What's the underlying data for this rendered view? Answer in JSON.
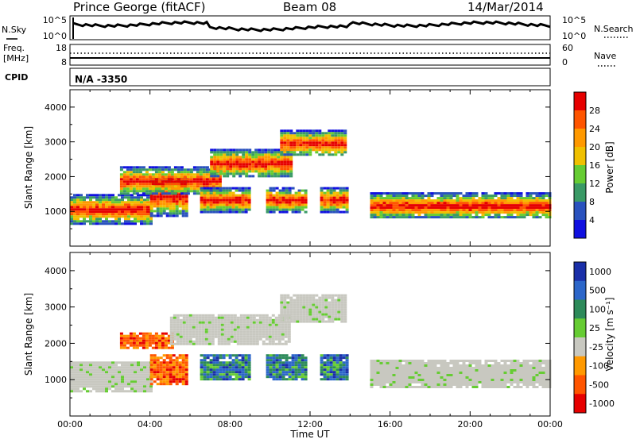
{
  "header": {
    "station": "Prince George (fitACF)",
    "beam": "Beam 08",
    "date": "14/Mar/2014"
  },
  "panels": {
    "nsky": {
      "label": "N.Sky",
      "right_label": "N.Search",
      "ticks": [
        "10^5",
        "10^0"
      ],
      "right_ticks": [
        "10^5",
        "10^0"
      ]
    },
    "freq": {
      "label_top": "Freq.",
      "label_unit": "[MHz]",
      "right_label": "Nave",
      "ticks": [
        "18",
        "8"
      ],
      "right_ticks": [
        "60",
        "0"
      ]
    },
    "cpid": {
      "label": "CPID",
      "value": "N/A -3350"
    }
  },
  "chart_data": [
    {
      "type": "heatmap",
      "name": "power",
      "xlabel": "",
      "ylabel": "Slant Range [km]",
      "xlim": [
        0,
        24
      ],
      "ylim": [
        0,
        4500
      ],
      "yticks": [
        1000,
        2000,
        3000,
        4000
      ],
      "colorbar": {
        "label": "Power [dB]",
        "ticks": [
          "28",
          "24",
          "20",
          "16",
          "12",
          "8",
          "4"
        ],
        "colors": [
          "#e60000",
          "#ff5500",
          "#ff9900",
          "#f0c000",
          "#66cc33",
          "#3a9a66",
          "#2a52be",
          "#1010e0"
        ]
      },
      "bands": [
        {
          "x0": 0.0,
          "x1": 4.0,
          "y0": 650,
          "y1": 1500
        },
        {
          "x0": 4.0,
          "x1": 5.8,
          "y0": 900,
          "y1": 2000
        },
        {
          "x0": 2.5,
          "x1": 7.5,
          "y0": 1500,
          "y1": 2300
        },
        {
          "x0": 7.0,
          "x1": 11.0,
          "y0": 2000,
          "y1": 2800
        },
        {
          "x0": 10.5,
          "x1": 13.8,
          "y0": 2600,
          "y1": 3350
        },
        {
          "x0": 6.5,
          "x1": 9.0,
          "y0": 1000,
          "y1": 1700
        },
        {
          "x0": 9.8,
          "x1": 11.8,
          "y0": 1000,
          "y1": 1700
        },
        {
          "x0": 12.5,
          "x1": 13.8,
          "y0": 1000,
          "y1": 1700
        },
        {
          "x0": 15.0,
          "x1": 24.0,
          "y0": 800,
          "y1": 1550
        }
      ]
    },
    {
      "type": "heatmap",
      "name": "velocity",
      "xlabel": "Time UT",
      "ylabel": "Slant Range [km]",
      "xlim": [
        0,
        24
      ],
      "ylim": [
        0,
        4500
      ],
      "xticks": [
        "00:00",
        "04:00",
        "08:00",
        "12:00",
        "16:00",
        "20:00",
        "00:00"
      ],
      "yticks": [
        1000,
        2000,
        3000,
        4000
      ],
      "colorbar": {
        "label": "Velocity [m s⁻¹]",
        "ticks": [
          "1000",
          "500",
          "100",
          "25",
          "-25",
          "-100",
          "-500",
          "-1000"
        ],
        "colors": [
          "#1a2fa8",
          "#2c66c9",
          "#2d8a5a",
          "#66cc33",
          "#c8c8c0",
          "#ff9900",
          "#ff5500",
          "#e60000"
        ]
      },
      "bands": [
        {
          "x0": 0.0,
          "x1": 4.0,
          "y0": 650,
          "y1": 1500
        },
        {
          "x0": 4.0,
          "x1": 5.8,
          "y0": 900,
          "y1": 1700
        },
        {
          "x0": 2.5,
          "x1": 5.2,
          "y0": 1900,
          "y1": 2300
        },
        {
          "x0": 5.0,
          "x1": 11.0,
          "y0": 2000,
          "y1": 2800
        },
        {
          "x0": 10.5,
          "x1": 13.8,
          "y0": 2600,
          "y1": 3350
        },
        {
          "x0": 6.5,
          "x1": 9.0,
          "y0": 1000,
          "y1": 1700
        },
        {
          "x0": 9.8,
          "x1": 11.8,
          "y0": 1000,
          "y1": 1700
        },
        {
          "x0": 12.5,
          "x1": 13.8,
          "y0": 1000,
          "y1": 1700
        },
        {
          "x0": 15.0,
          "x1": 24.0,
          "y0": 800,
          "y1": 1550
        }
      ]
    }
  ]
}
